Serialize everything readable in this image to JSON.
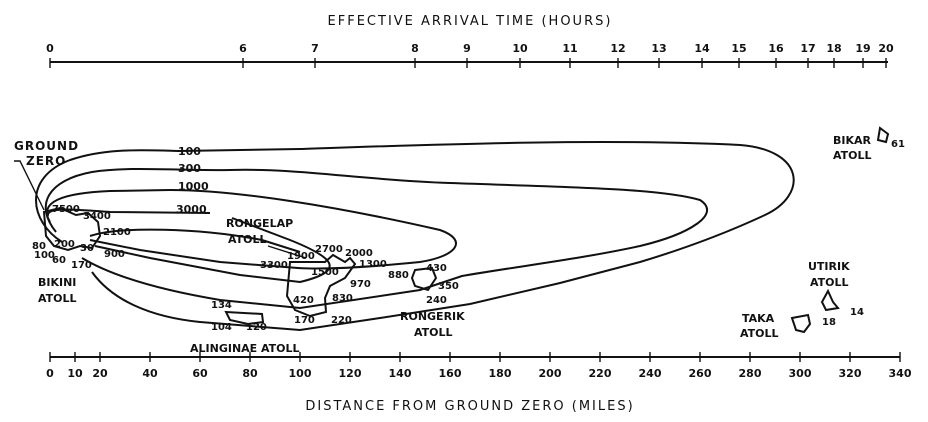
{
  "top_axis": {
    "title": "EFFECTIVE ARRIVAL TIME (HOURS)",
    "ticks": [
      "0",
      "6",
      "7",
      "8",
      "9",
      "10",
      "11",
      "12",
      "13",
      "14",
      "15",
      "16",
      "17",
      "18",
      "19",
      "20"
    ]
  },
  "bottom_axis": {
    "title": "DISTANCE FROM GROUND ZERO (MILES)",
    "ticks": [
      "0",
      "10",
      "20",
      "40",
      "60",
      "80",
      "100",
      "120",
      "140",
      "160",
      "180",
      "200",
      "220",
      "240",
      "260",
      "280",
      "300",
      "320",
      "340"
    ]
  },
  "places": {
    "ground_zero": [
      "GROUND",
      "ZERO"
    ],
    "bikini": [
      "BIKINI",
      "ATOLL"
    ],
    "rongelap": [
      "RONGELAP",
      "ATOLL"
    ],
    "alinginae": "ALINGINAE ATOLL",
    "rongerik": [
      "RONGERIK",
      "ATOLL"
    ],
    "bikar": [
      "BIKAR",
      "ATOLL"
    ],
    "utirik": [
      "UTIRIK",
      "ATOLL"
    ],
    "taka": [
      "TAKA",
      "ATOLL"
    ]
  },
  "contour_labels": [
    "100",
    "300",
    "1000",
    "3000"
  ],
  "readings": {
    "bikini": [
      "7500",
      "3400",
      "2100",
      "80",
      "200",
      "30",
      "900",
      "100",
      "60",
      "170"
    ],
    "rongelap": [
      "1900",
      "2700",
      "2000",
      "1300",
      "3300",
      "1500",
      "970",
      "420",
      "830",
      "170",
      "220"
    ],
    "alinginae": [
      "134",
      "104",
      "120"
    ],
    "rongerik": [
      "880",
      "430",
      "350",
      "240"
    ],
    "bikar": "61",
    "utirik": "14",
    "taka": "18"
  }
}
